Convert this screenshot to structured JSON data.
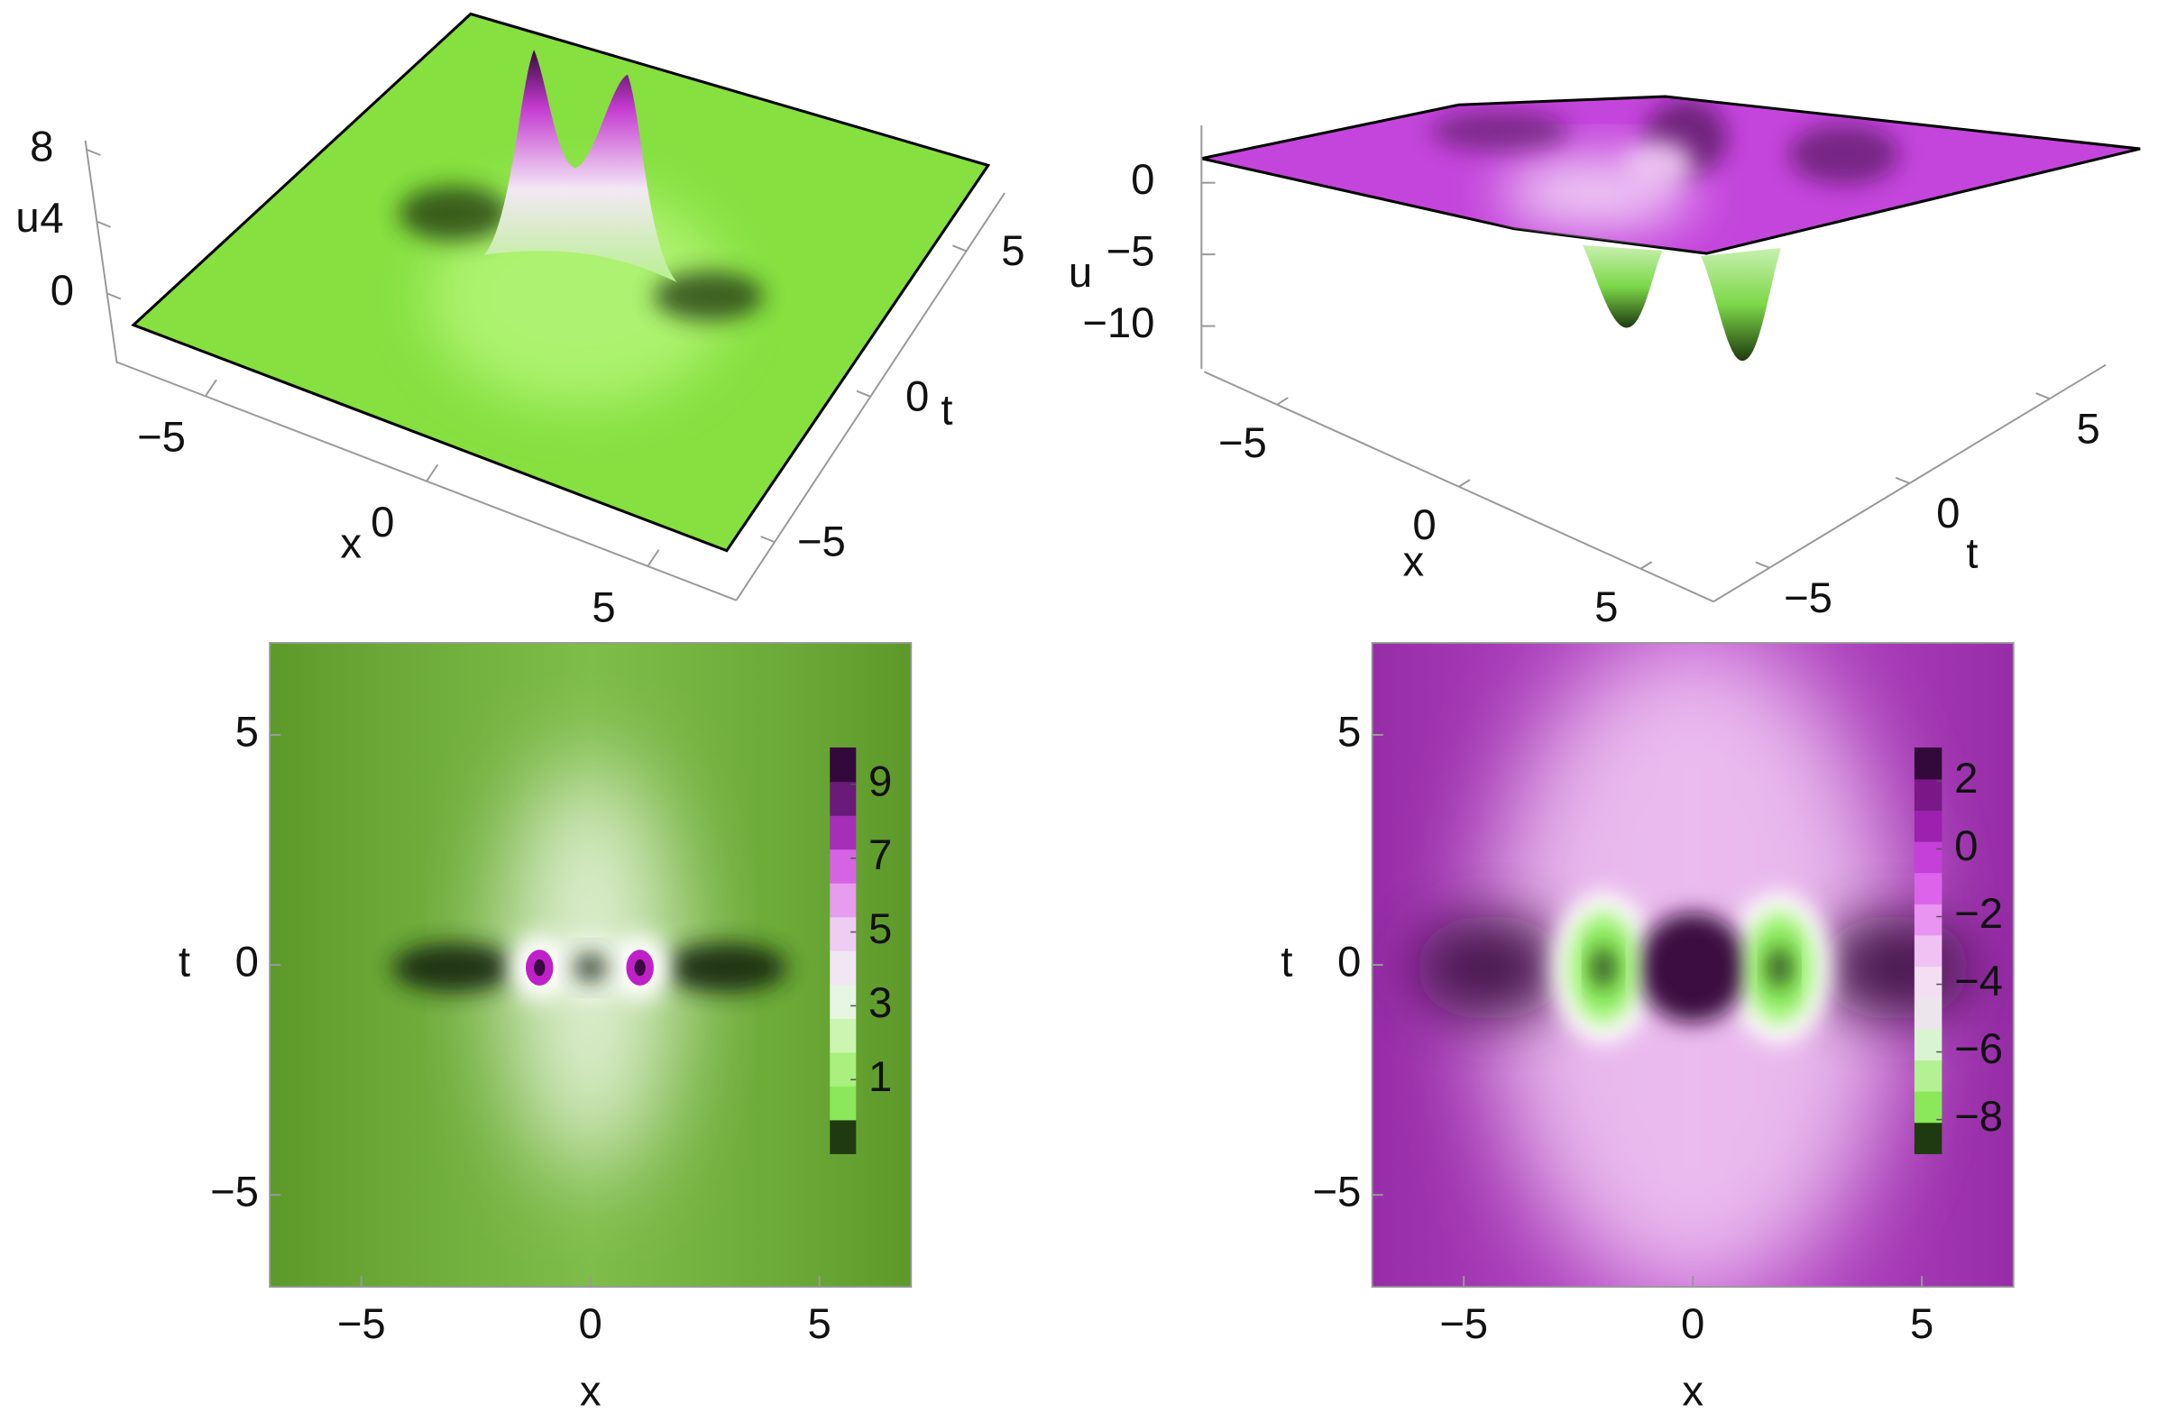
{
  "chart_data": [
    {
      "type": "surface",
      "xlabel": "x",
      "ylabel": "t",
      "zlabel": "u",
      "xlim": [
        -7,
        7
      ],
      "ylim": [
        -7,
        7
      ],
      "zlim": [
        -3.9,
        8.5
      ],
      "xticks": [
        {
          "value": -5,
          "label": "−5"
        },
        0,
        5
      ],
      "yticks": [
        {
          "value": -5,
          "label": "−5"
        },
        0,
        5
      ],
      "zticks": [
        0,
        4,
        8
      ],
      "color": "#86e040"
    },
    {
      "type": "surface",
      "xlabel": "x",
      "ylabel": "t",
      "zlabel": "u",
      "xlim": [
        -7,
        7
      ],
      "ylim": [
        -7,
        7
      ],
      "zlim": [
        -13,
        4
      ],
      "xticks": [
        {
          "value": -5,
          "label": "−5"
        },
        0,
        5
      ],
      "yticks": [
        {
          "value": -5,
          "label": "−5"
        },
        0,
        5
      ],
      "zticks": [
        {
          "value": -10,
          "label": "−10"
        },
        {
          "value": -5,
          "label": "−5"
        },
        0
      ],
      "color": "#c445dc"
    },
    {
      "type": "density",
      "xlabel": "x",
      "ylabel": "t",
      "xlim": [
        -7,
        7
      ],
      "ylim": [
        -7,
        7
      ],
      "xticks": [
        {
          "value": -5,
          "label": "−5"
        },
        0,
        5
      ],
      "yticks": [
        {
          "value": -5,
          "label": "−5"
        },
        0,
        5
      ],
      "color": "#6db431",
      "colorbar": {
        "lim": [
          -1,
          10
        ],
        "ticks": [
          1,
          3,
          5,
          7,
          9
        ],
        "colors": [
          "#1f3a10",
          "#8ae85a",
          "#aaf07e",
          "#cbf5b0",
          "#e6f6e2",
          "#f1e6f3",
          "#eecdf3",
          "#e79cf0",
          "#d564e4",
          "#a52fb8",
          "#6a1a78",
          "#33093c"
        ]
      }
    },
    {
      "type": "density",
      "xlabel": "x",
      "ylabel": "t",
      "xlim": [
        -7,
        7
      ],
      "ylim": [
        -7,
        7
      ],
      "xticks": [
        {
          "value": -5,
          "label": "−5"
        },
        0,
        5
      ],
      "yticks": [
        {
          "value": -5,
          "label": "−5"
        },
        0,
        5
      ],
      "color": "#b134c4",
      "colorbar": {
        "lim": [
          -9,
          3
        ],
        "ticks": [
          {
            "value": -8,
            "label": "−8"
          },
          {
            "value": -6,
            "label": "−6"
          },
          {
            "value": -4,
            "label": "−4"
          },
          {
            "value": -2,
            "label": "−2"
          },
          0,
          2
        ],
        "colors": [
          "#1f3a10",
          "#8ae85a",
          "#b4f094",
          "#d8f4d0",
          "#ece6ec",
          "#f4def4",
          "#f0c2f4",
          "#e894f0",
          "#dc64ea",
          "#c440d8",
          "#9a22ac",
          "#7a1888",
          "#33093c"
        ]
      }
    }
  ]
}
